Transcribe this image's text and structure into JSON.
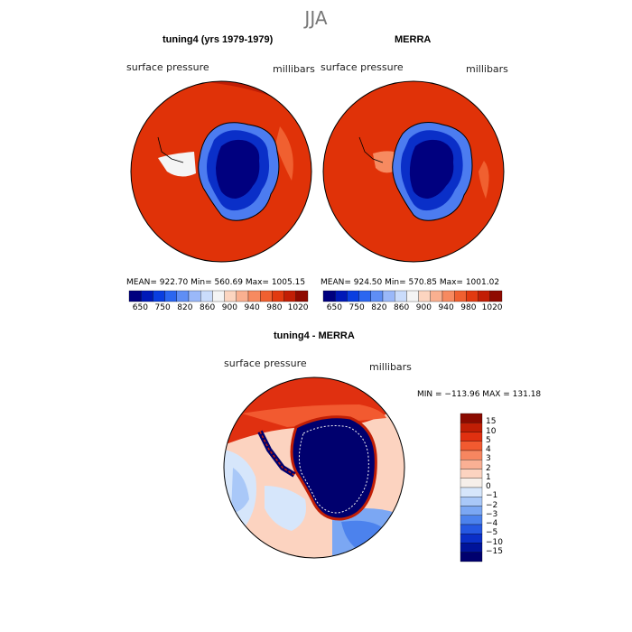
{
  "page_title": "JJA",
  "panels": [
    {
      "title": "tuning4 (yrs 1979-1979)",
      "variable_label": "surface pressure",
      "units_label": "millibars",
      "stats": {
        "mean": "922.70",
        "min": "560.69",
        "max": "1005.15"
      },
      "stats_text": "MEAN= 922.70   Min= 560.69   Max= 1005.15"
    },
    {
      "title": "MERRA",
      "variable_label": "surface pressure",
      "units_label": "millibars",
      "stats": {
        "mean": "924.50",
        "min": "570.85",
        "max": "1001.02"
      },
      "stats_text": "MEAN= 924.50   Min= 570.85   Max= 1001.02"
    }
  ],
  "field_colorbar": {
    "tick_labels": [
      "650",
      "750",
      "820",
      "860",
      "900",
      "940",
      "980",
      "1020"
    ],
    "colors": [
      "#00007f",
      "#0019b8",
      "#0a3ee0",
      "#2b66f0",
      "#5f8ef5",
      "#9ab8f9",
      "#cadcfb",
      "#f4f4f4",
      "#fcd5c0",
      "#fab090",
      "#f78a60",
      "#f06030",
      "#e23a10",
      "#c21e05",
      "#8f0a00"
    ]
  },
  "diff_panel": {
    "title": "tuning4 - MERRA",
    "variable_label": "surface pressure",
    "units_label": "millibars",
    "min_max_text": "MIN = −113.96  MAX = 131.18",
    "colorbar": {
      "tick_labels": [
        "15",
        "10",
        "5",
        "4",
        "3",
        "2",
        "1",
        "0",
        "−1",
        "−2",
        "−3",
        "−4",
        "−5",
        "−10",
        "−15"
      ],
      "colors": [
        "#8a0a00",
        "#c01e05",
        "#e03010",
        "#f25a30",
        "#f78660",
        "#fab094",
        "#fcd3c0",
        "#f6efea",
        "#d6e6fb",
        "#a9c8f8",
        "#7ba7f3",
        "#4c82ed",
        "#2558e2",
        "#0a2fc8",
        "#00139a",
        "#00006e"
      ]
    }
  }
}
